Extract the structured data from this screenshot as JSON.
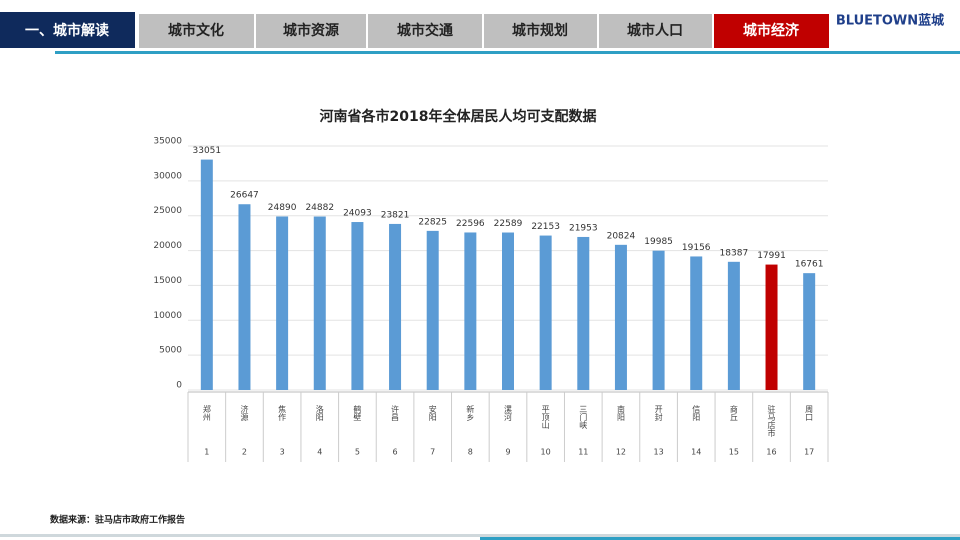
{
  "header": {
    "section": "一、城市解读",
    "tabs": [
      "城市文化",
      "城市资源",
      "城市交通",
      "城市规划",
      "城市人口",
      "城市经济"
    ],
    "logo": "BLUETOWN蓝城"
  },
  "source": "数据来源：驻马店市政府工作报告",
  "chart_data": {
    "type": "bar",
    "title": "河南省各市2018年全体居民人均可支配数据",
    "categories": [
      "郑州",
      "济源",
      "焦作",
      "洛阳",
      "鹤壁",
      "许昌",
      "安阳",
      "新乡",
      "漯河",
      "平顶山",
      "三门峡",
      "南阳",
      "开封",
      "信阳",
      "商丘",
      "驻马店市",
      "周口"
    ],
    "indices": [
      "1",
      "2",
      "3",
      "4",
      "5",
      "6",
      "7",
      "8",
      "9",
      "10",
      "11",
      "12",
      "13",
      "14",
      "15",
      "16",
      "17"
    ],
    "values": [
      33051,
      26647,
      24890,
      24882,
      24093,
      23821,
      22825,
      22596,
      22589,
      22153,
      21953,
      20824,
      19985,
      19156,
      18387,
      17991,
      16761
    ],
    "colors": [
      "#5b9bd5",
      "#5b9bd5",
      "#5b9bd5",
      "#5b9bd5",
      "#5b9bd5",
      "#5b9bd5",
      "#5b9bd5",
      "#5b9bd5",
      "#5b9bd5",
      "#5b9bd5",
      "#5b9bd5",
      "#5b9bd5",
      "#5b9bd5",
      "#5b9bd5",
      "#5b9bd5",
      "#c00000",
      "#5b9bd5"
    ],
    "ylim": [
      0,
      35000
    ],
    "yticks": [
      0,
      5000,
      10000,
      15000,
      20000,
      25000,
      30000,
      35000
    ],
    "grid": true
  }
}
